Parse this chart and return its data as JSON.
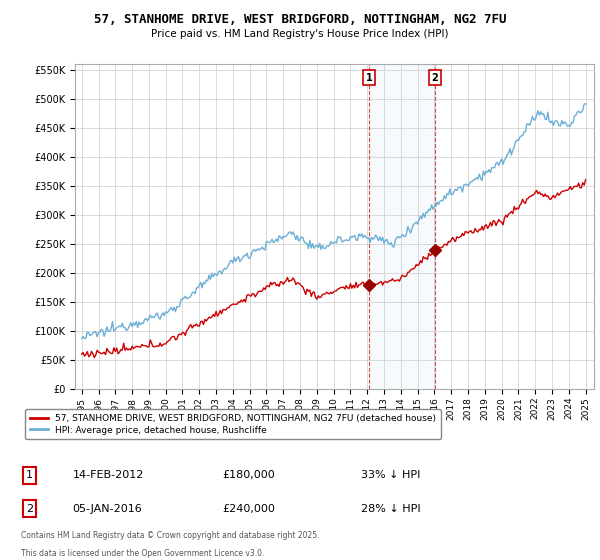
{
  "title": "57, STANHOME DRIVE, WEST BRIDGFORD, NOTTINGHAM, NG2 7FU",
  "subtitle": "Price paid vs. HM Land Registry's House Price Index (HPI)",
  "legend_line1": "57, STANHOME DRIVE, WEST BRIDGFORD, NOTTINGHAM, NG2 7FU (detached house)",
  "legend_line2": "HPI: Average price, detached house, Rushcliffe",
  "annotation1": {
    "label": "1",
    "date_str": "14-FEB-2012",
    "price": "£180,000",
    "pct": "33% ↓ HPI",
    "x_year": 2012.12,
    "y_val": 180000
  },
  "annotation2": {
    "label": "2",
    "date_str": "05-JAN-2016",
    "price": "£240,000",
    "pct": "28% ↓ HPI",
    "x_year": 2016.02,
    "y_val": 240000
  },
  "footnote1": "Contains HM Land Registry data © Crown copyright and database right 2025.",
  "footnote2": "This data is licensed under the Open Government Licence v3.0.",
  "hpi_color": "#6baed6",
  "price_color": "#cc0000",
  "marker_color": "#990000",
  "vline_color": "#cc0000",
  "span_color": "#d0e8f5",
  "background_color": "#ffffff",
  "grid_color": "#cccccc",
  "ylim": [
    0,
    560000
  ],
  "xlim": [
    1994.6,
    2025.5
  ],
  "yticks": [
    0,
    50000,
    100000,
    150000,
    200000,
    250000,
    300000,
    350000,
    400000,
    450000,
    500000,
    550000
  ]
}
